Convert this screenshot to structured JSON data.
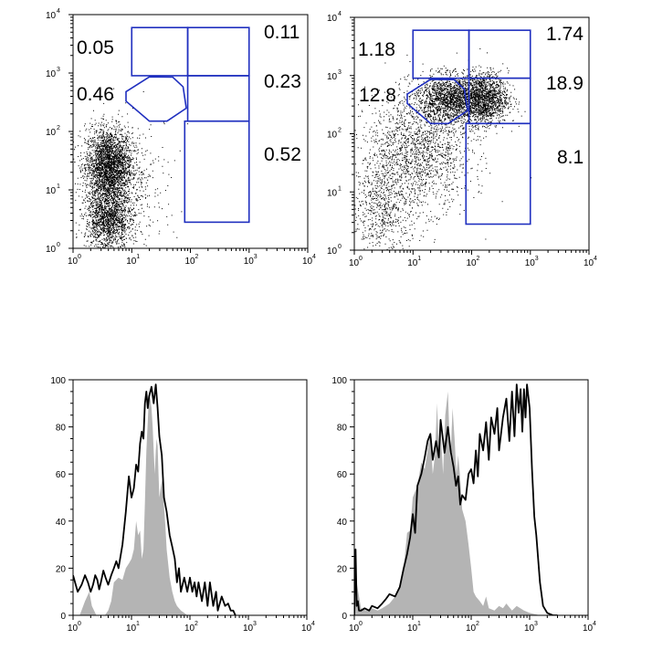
{
  "colors": {
    "gate": "#1f2fbf",
    "dots": "#000000",
    "fill_hist": "#b4b4b4",
    "line_hist": "#000000"
  },
  "chart_data": [
    {
      "type": "scatter",
      "xscale": "log",
      "yscale": "log",
      "xlim": [
        1,
        10000
      ],
      "ylim": [
        1,
        10000
      ],
      "xticks": [
        {
          "base": "10",
          "exp": "0",
          "v": 1
        },
        {
          "base": "10",
          "exp": "1",
          "v": 10
        },
        {
          "base": "10",
          "exp": "2",
          "v": 100
        },
        {
          "base": "10",
          "exp": "3",
          "v": 1000
        },
        {
          "base": "10",
          "exp": "4",
          "v": 10000
        }
      ],
      "yticks": [
        {
          "base": "10",
          "exp": "0",
          "v": 1
        },
        {
          "base": "10",
          "exp": "1",
          "v": 10
        },
        {
          "base": "10",
          "exp": "2",
          "v": 100
        },
        {
          "base": "10",
          "exp": "3",
          "v": 1000
        },
        {
          "base": "10",
          "exp": "4",
          "v": 10000
        }
      ],
      "clusters": [
        {
          "cx": 4,
          "cy": 25,
          "sx": 0.2,
          "sy": 0.33,
          "n": 2800
        },
        {
          "cx": 4,
          "cy": 3,
          "sx": 0.2,
          "sy": 0.25,
          "n": 1500
        },
        {
          "cx": 12,
          "cy": 15,
          "sx": 0.35,
          "sy": 0.55,
          "n": 250
        }
      ],
      "gates": [
        {
          "label": "0.05",
          "shape": "rect",
          "x": [
            10,
            90
          ],
          "y": [
            900,
            6000
          ]
        },
        {
          "label": "0.11",
          "shape": "rect",
          "x": [
            90,
            1000
          ],
          "y": [
            900,
            6000
          ]
        },
        {
          "label": "0.23",
          "shape": "rect",
          "x": [
            90,
            1000
          ],
          "y": [
            150,
            900
          ]
        },
        {
          "label": "0.52",
          "shape": "rect",
          "x": [
            80,
            1000
          ],
          "y": [
            2.8,
            150
          ]
        },
        {
          "label": "0.46",
          "shape": "poly",
          "points": [
            [
              8,
              480
            ],
            [
              20,
              860
            ],
            [
              50,
              850
            ],
            [
              75,
              580
            ],
            [
              85,
              250
            ],
            [
              40,
              150
            ],
            [
              20,
              150
            ],
            [
              8,
              330
            ]
          ]
        }
      ]
    },
    {
      "type": "scatter",
      "xscale": "log",
      "yscale": "log",
      "xlim": [
        1,
        10000
      ],
      "ylim": [
        1,
        10000
      ],
      "xticks": [
        {
          "base": "10",
          "exp": "0",
          "v": 1
        },
        {
          "base": "10",
          "exp": "1",
          "v": 10
        },
        {
          "base": "10",
          "exp": "2",
          "v": 100
        },
        {
          "base": "10",
          "exp": "3",
          "v": 1000
        },
        {
          "base": "10",
          "exp": "4",
          "v": 10000
        }
      ],
      "yticks": [
        {
          "base": "10",
          "exp": "0",
          "v": 1
        },
        {
          "base": "10",
          "exp": "1",
          "v": 10
        },
        {
          "base": "10",
          "exp": "2",
          "v": 100
        },
        {
          "base": "10",
          "exp": "3",
          "v": 1000
        },
        {
          "base": "10",
          "exp": "4",
          "v": 10000
        }
      ],
      "clusters": [
        {
          "cx": 40,
          "cy": 400,
          "sx": 0.28,
          "sy": 0.2,
          "n": 1500
        },
        {
          "cx": 150,
          "cy": 400,
          "sx": 0.22,
          "sy": 0.22,
          "n": 1700
        },
        {
          "cx": 12,
          "cy": 50,
          "sx": 0.45,
          "sy": 0.5,
          "n": 1600
        },
        {
          "cx": 3,
          "cy": 5,
          "sx": 0.3,
          "sy": 0.45,
          "n": 700
        }
      ],
      "gates": [
        {
          "label": "1.18",
          "shape": "rect",
          "x": [
            10,
            90
          ],
          "y": [
            900,
            6000
          ]
        },
        {
          "label": "1.74",
          "shape": "rect",
          "x": [
            90,
            1000
          ],
          "y": [
            900,
            6000
          ]
        },
        {
          "label": "18.9",
          "shape": "rect",
          "x": [
            90,
            1000
          ],
          "y": [
            150,
            900
          ]
        },
        {
          "label": "8.1",
          "shape": "rect",
          "x": [
            80,
            1000
          ],
          "y": [
            2.8,
            150
          ]
        },
        {
          "label": "12.8",
          "shape": "poly",
          "points": [
            [
              8,
              480
            ],
            [
              20,
              860
            ],
            [
              50,
              850
            ],
            [
              75,
              580
            ],
            [
              85,
              250
            ],
            [
              40,
              150
            ],
            [
              20,
              150
            ],
            [
              8,
              330
            ]
          ]
        }
      ]
    },
    {
      "type": "area",
      "xscale": "log",
      "xlim": [
        1,
        10000
      ],
      "ylim": [
        0,
        100
      ],
      "xticks": [
        {
          "base": "10",
          "exp": "0",
          "v": 1
        },
        {
          "base": "10",
          "exp": "1",
          "v": 10
        },
        {
          "base": "10",
          "exp": "2",
          "v": 100
        },
        {
          "base": "10",
          "exp": "3",
          "v": 1000
        },
        {
          "base": "10",
          "exp": "4",
          "v": 10000
        }
      ],
      "yticks": [
        "0",
        "20",
        "40",
        "60",
        "80",
        "100"
      ],
      "series": [
        {
          "style": "fill",
          "x": [
            1,
            1.3,
            1.6,
            1.9,
            2.1,
            2.5,
            3,
            3.5,
            4,
            4.5,
            5,
            6,
            7,
            8,
            9,
            10,
            11,
            12,
            13,
            14,
            15,
            16,
            17,
            18,
            19,
            20,
            21,
            22,
            23,
            24,
            25,
            26,
            27,
            28,
            29,
            30,
            32,
            34,
            36,
            38,
            40,
            45,
            50,
            55,
            60,
            70,
            80,
            90,
            100,
            110,
            120,
            150,
            1000
          ],
          "y": [
            0,
            0,
            6,
            10,
            4,
            0,
            0,
            0,
            2,
            6,
            14,
            16,
            15,
            20,
            22,
            24,
            28,
            40,
            34,
            36,
            24,
            28,
            48,
            70,
            82,
            95,
            92,
            88,
            80,
            70,
            60,
            70,
            75,
            72,
            60,
            50,
            55,
            58,
            46,
            38,
            28,
            16,
            10,
            6,
            4,
            2,
            1,
            0,
            0,
            0,
            0,
            0,
            0
          ]
        },
        {
          "style": "line",
          "x": [
            1,
            1.2,
            1.4,
            1.6,
            1.8,
            2,
            2.2,
            2.4,
            2.6,
            2.8,
            3,
            3.3,
            3.6,
            4,
            4.5,
            5,
            5.5,
            6,
            7,
            8,
            9,
            10,
            11,
            12,
            13,
            14,
            15,
            16,
            17,
            18,
            19,
            20,
            22,
            24,
            26,
            28,
            30,
            33,
            36,
            40,
            45,
            50,
            55,
            60,
            65,
            70,
            80,
            90,
            100,
            110,
            120,
            130,
            140,
            160,
            180,
            200,
            220,
            250,
            280,
            300,
            350,
            400,
            450,
            500,
            550,
            600
          ],
          "y": [
            17,
            10,
            13,
            17,
            14,
            10,
            13,
            17,
            15,
            11,
            14,
            19,
            16,
            13,
            17,
            20,
            23,
            20,
            30,
            44,
            59,
            50,
            54,
            64,
            61,
            73,
            78,
            75,
            90,
            95,
            88,
            93,
            97,
            90,
            98,
            88,
            76,
            68,
            50,
            44,
            34,
            29,
            24,
            14,
            20,
            10,
            16,
            10,
            16,
            10,
            14,
            8,
            14,
            6,
            14,
            4,
            14,
            4,
            10,
            2,
            8,
            4,
            5,
            2,
            2,
            0
          ]
        }
      ]
    },
    {
      "type": "area",
      "xscale": "log",
      "xlim": [
        1,
        10000
      ],
      "ylim": [
        0,
        100
      ],
      "xticks": [
        {
          "base": "10",
          "exp": "0",
          "v": 1
        },
        {
          "base": "10",
          "exp": "1",
          "v": 10
        },
        {
          "base": "10",
          "exp": "2",
          "v": 100
        },
        {
          "base": "10",
          "exp": "3",
          "v": 1000
        },
        {
          "base": "10",
          "exp": "4",
          "v": 10000
        }
      ],
      "yticks": [
        "0",
        "20",
        "40",
        "60",
        "80",
        "100"
      ],
      "series": [
        {
          "style": "fill",
          "x": [
            1,
            1.1,
            1.3,
            1.6,
            2,
            2.5,
            3,
            4,
            5,
            6,
            7,
            8,
            9,
            10,
            12,
            14,
            16,
            18,
            20,
            22,
            24,
            26,
            28,
            30,
            33,
            36,
            40,
            44,
            48,
            52,
            56,
            60,
            65,
            70,
            80,
            90,
            100,
            110,
            120,
            140,
            160,
            180,
            200,
            250,
            300,
            350,
            400,
            500,
            600,
            800,
            1000,
            1500
          ],
          "y": [
            0,
            14,
            3,
            2,
            3,
            2,
            3,
            5,
            8,
            12,
            20,
            35,
            36,
            50,
            55,
            65,
            62,
            70,
            78,
            60,
            68,
            90,
            70,
            80,
            60,
            85,
            95,
            65,
            88,
            75,
            60,
            68,
            58,
            45,
            40,
            30,
            20,
            10,
            8,
            6,
            4,
            8,
            3,
            2,
            4,
            3,
            5,
            2,
            4,
            2,
            1,
            0
          ]
        },
        {
          "style": "line",
          "x": [
            1,
            1.05,
            1.1,
            1.15,
            1.2,
            1.3,
            1.5,
            1.8,
            2,
            2.5,
            3,
            3.5,
            4,
            5,
            6,
            7,
            8,
            9,
            10,
            11,
            12,
            14,
            16,
            18,
            20,
            22,
            25,
            28,
            30,
            35,
            40,
            45,
            50,
            55,
            60,
            65,
            70,
            80,
            90,
            100,
            110,
            120,
            130,
            140,
            160,
            180,
            200,
            220,
            250,
            280,
            300,
            350,
            400,
            450,
            500,
            550,
            600,
            650,
            700,
            750,
            800,
            850,
            900,
            1000,
            1100,
            1200,
            1300,
            1500,
            1700,
            2000,
            2500,
            3000
          ],
          "y": [
            0,
            28,
            4,
            6,
            2,
            2,
            3,
            2,
            4,
            3,
            5,
            7,
            9,
            8,
            12,
            20,
            26,
            33,
            43,
            35,
            55,
            60,
            67,
            74,
            77,
            66,
            74,
            67,
            83,
            69,
            80,
            69,
            63,
            55,
            59,
            47,
            51,
            49,
            60,
            62,
            56,
            70,
            59,
            77,
            70,
            82,
            66,
            84,
            77,
            88,
            70,
            84,
            92,
            74,
            95,
            76,
            98,
            86,
            96,
            78,
            96,
            84,
            98,
            88,
            62,
            42,
            34,
            14,
            4,
            1,
            0,
            0
          ]
        }
      ]
    }
  ]
}
